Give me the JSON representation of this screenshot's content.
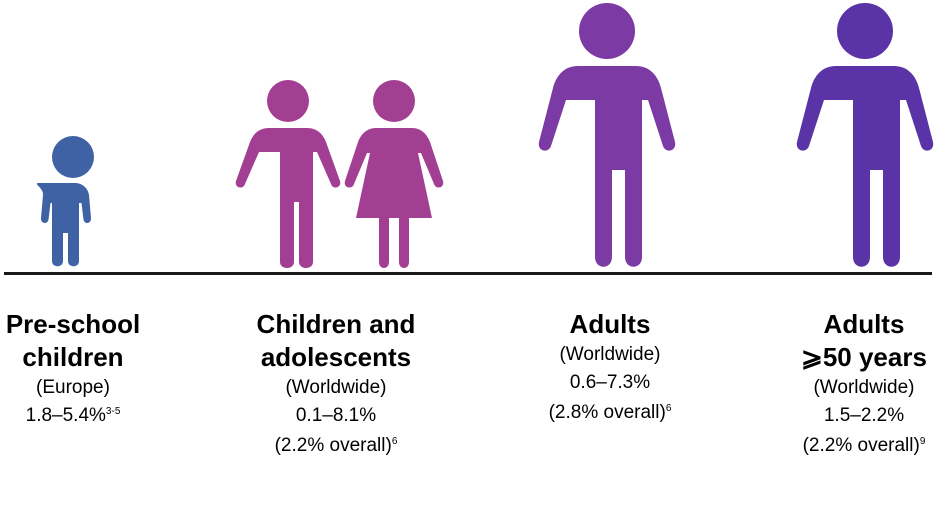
{
  "groups": [
    {
      "title_lines": [
        "Pre-school",
        "children"
      ],
      "region": "(Europe)",
      "range": "1.8–5.4%",
      "range_ref": "3-5",
      "overall": "",
      "overall_ref": "",
      "icon": "small-child-icon",
      "color": "#3e62a4"
    },
    {
      "title_lines": [
        "Children and",
        "adolescents"
      ],
      "region": "(Worldwide)",
      "range": "0.1–8.1%",
      "range_ref": "",
      "overall": "(2.2% overall)",
      "overall_ref": "6",
      "icon": "boy-and-girl-icon",
      "color": "#a23f93"
    },
    {
      "title_lines": [
        "Adults"
      ],
      "region": "(Worldwide)",
      "range": "0.6–7.3%",
      "range_ref": "",
      "overall": "(2.8% overall)",
      "overall_ref": "6",
      "icon": "adult-icon",
      "color": "#7c3aa5"
    },
    {
      "title_lines": [
        "Adults",
        "⩾50 years"
      ],
      "region": "(Worldwide)",
      "range": "1.5–2.2%",
      "range_ref": "",
      "overall": "(2.2% overall)",
      "overall_ref": "9",
      "icon": "older-adult-icon",
      "color": "#5a34a6"
    }
  ],
  "colors": {
    "baseline": "#1a1a1a",
    "text": "#000000"
  }
}
